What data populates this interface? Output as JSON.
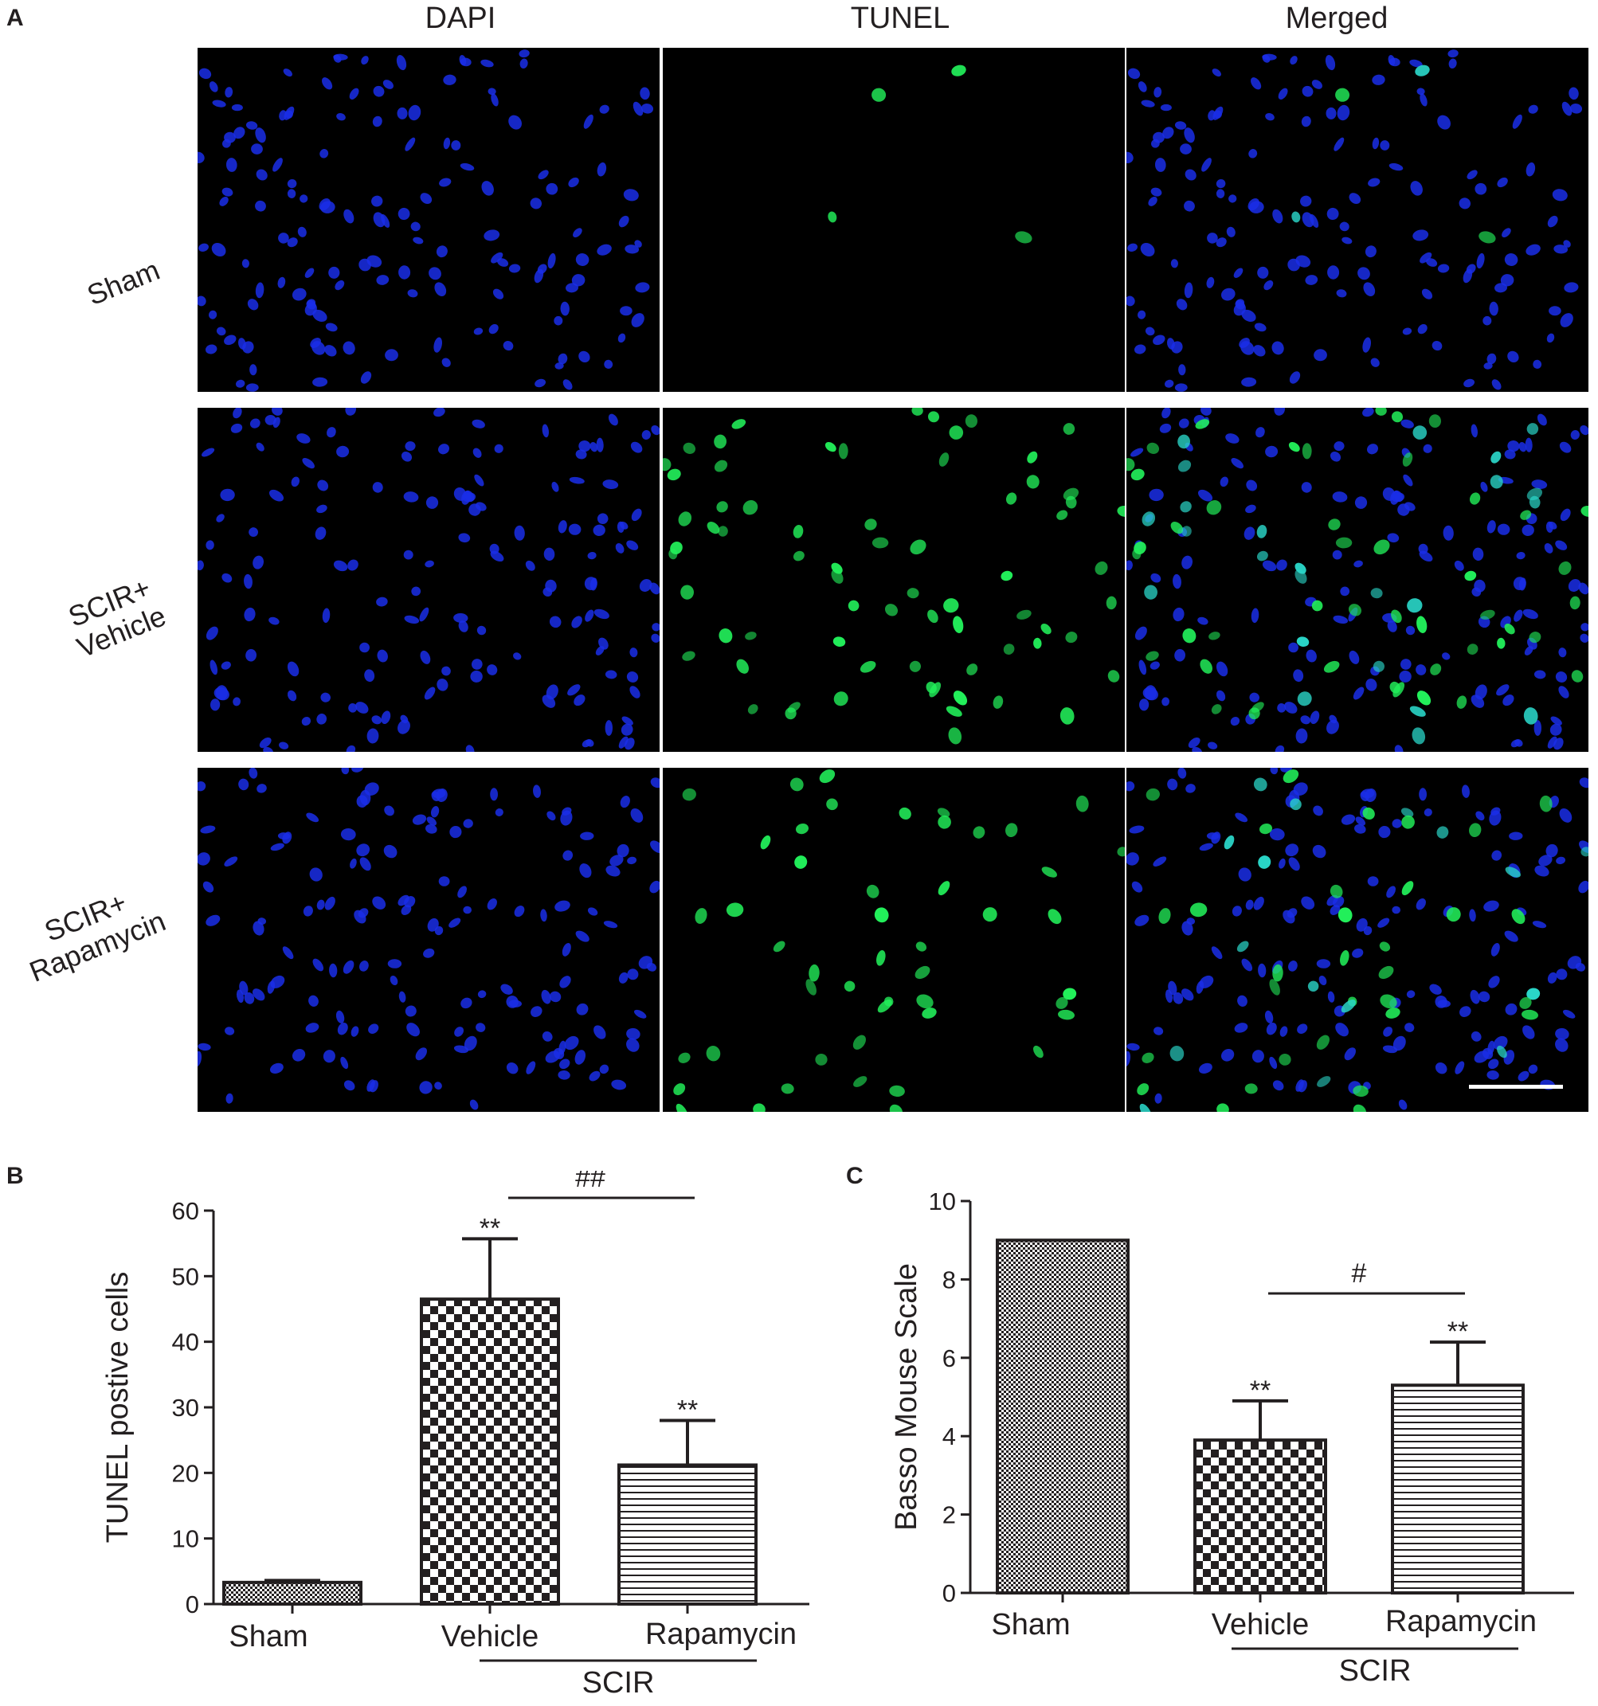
{
  "panel_a": {
    "letter": "A",
    "columns": [
      "DAPI",
      "TUNEL",
      "Merged"
    ],
    "rows": [
      {
        "lines": [
          "Sham"
        ]
      },
      {
        "lines": [
          "SCIR+",
          "Vehicle"
        ]
      },
      {
        "lines": [
          "SCIR+",
          "Rapamycin"
        ]
      }
    ],
    "colors": {
      "dapi": "#1a2ee8",
      "tunel": "#22f05a",
      "merged_overlap": "#2ad6c8"
    }
  },
  "panel_b": {
    "letter": "B"
  },
  "panel_c": {
    "letter": "C"
  },
  "chart_data": [
    {
      "type": "bar",
      "panel": "B",
      "categories": [
        "Sham",
        "Vehicle",
        "Rapamycin"
      ],
      "values": [
        3.3,
        46.5,
        21.2
      ],
      "errors": [
        0.3,
        9.2,
        6.8
      ],
      "ylabel": "TUNEL postive cells",
      "ylim": [
        0,
        60
      ],
      "yticks": [
        0,
        10,
        20,
        30,
        40,
        50,
        60
      ],
      "group_label": "SCIR",
      "significance": [
        "",
        "**",
        "**"
      ],
      "comparison": {
        "label": "##",
        "from": "Vehicle",
        "to": "Rapamycin"
      },
      "patterns": [
        "fine-dots",
        "checker",
        "horizontal-lines"
      ],
      "grid": false
    },
    {
      "type": "bar",
      "panel": "C",
      "categories": [
        "Sham",
        "Vehicle",
        "Rapamycin"
      ],
      "values": [
        9.0,
        3.9,
        5.3
      ],
      "errors": [
        0,
        1.0,
        1.1
      ],
      "ylabel": "Basso Mouse Scale",
      "ylim": [
        0,
        10
      ],
      "yticks": [
        0,
        2,
        4,
        6,
        8,
        10
      ],
      "group_label": "SCIR",
      "significance": [
        "",
        "**",
        "**"
      ],
      "comparison": {
        "label": "#",
        "from": "Vehicle",
        "to": "Rapamycin"
      },
      "patterns": [
        "fine-dots",
        "checker",
        "horizontal-lines"
      ],
      "grid": false
    }
  ]
}
